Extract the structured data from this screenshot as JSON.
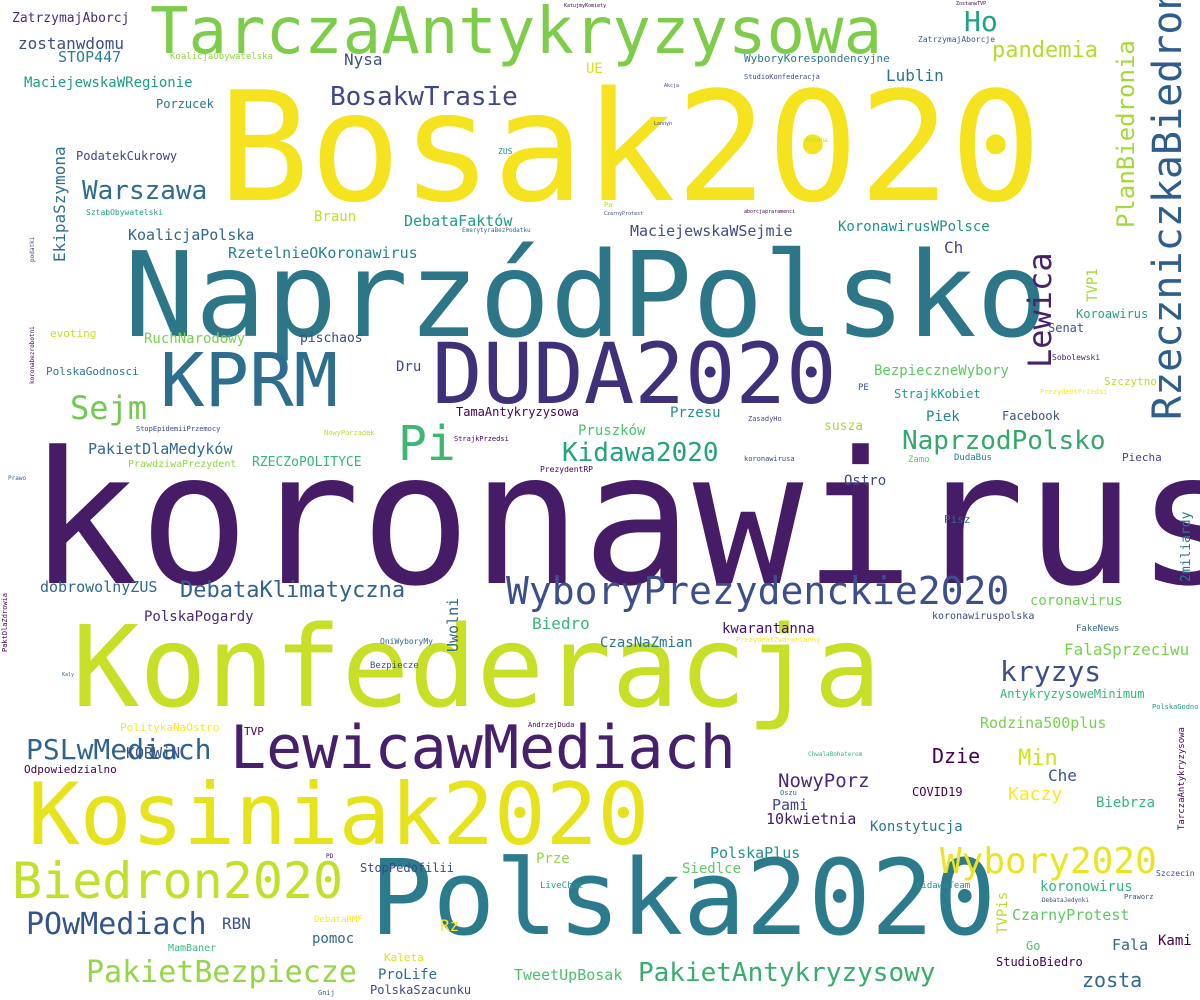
{
  "colors": {
    "background": "#ffffff",
    "palette": [
      "#440154",
      "#482878",
      "#3e4989",
      "#31688e",
      "#26828e",
      "#1f9e89",
      "#35b779",
      "#6ece58",
      "#b5de2b",
      "#fde725"
    ]
  },
  "words": [
    {
      "text": "koronawirus",
      "color": "#461c67"
    },
    {
      "text": "Bosak2020",
      "color": "#f5e31f"
    },
    {
      "text": "NaprzódPolsko",
      "color": "#2c7688"
    },
    {
      "text": "Konfederacja",
      "color": "#c7df27"
    },
    {
      "text": "Polska2020",
      "color": "#2b7b8c"
    },
    {
      "text": "Kosiniak2020",
      "color": "#e6e21c"
    },
    {
      "text": "TarczaAntykryzysowa",
      "color": "#7dcd4a"
    },
    {
      "text": "DUDA2020",
      "color": "#40307a"
    },
    {
      "text": "KPRM",
      "color": "#2d6d8e"
    },
    {
      "text": "LewicawMediach",
      "color": "#47206c"
    },
    {
      "text": "Biedron2020",
      "color": "#c2df2a"
    },
    {
      "text": "WyboryPrezydenckie2020",
      "color": "#3c4f8c"
    },
    {
      "text": "RzeczniczkaBiedronia",
      "color": "#2f5e8e"
    },
    {
      "text": "Pi",
      "color": "#3eb772"
    },
    {
      "text": "Sejm",
      "color": "#72c94e"
    },
    {
      "text": "Lewica",
      "color": "#47216c"
    },
    {
      "text": "PlanBiedronia",
      "color": "#a4d93a"
    },
    {
      "text": "Wybory2020",
      "color": "#eae422"
    },
    {
      "text": "PakietBezpiecze",
      "color": "#95d648"
    },
    {
      "text": "PakietAntykryzysowy",
      "color": "#38ad6d"
    },
    {
      "text": "POwMediach",
      "color": "#34558c"
    },
    {
      "text": "PSLwMediach",
      "color": "#30648e"
    },
    {
      "text": "BosakwTrasie",
      "color": "#414688"
    },
    {
      "text": "Warszawa",
      "color": "#2f6c8e"
    },
    {
      "text": "DebataKlimatyczna",
      "color": "#32628d"
    },
    {
      "text": "NaprzodPolsko",
      "color": "#35a86c"
    },
    {
      "text": "Kidawa2020",
      "color": "#22a37e"
    },
    {
      "text": "kryzys",
      "color": "#3c4e8b"
    },
    {
      "text": "Ho",
      "color": "#1fa386"
    },
    {
      "text": "pandemia",
      "color": "#b4dc2c"
    },
    {
      "text": "zostanwdomu",
      "color": "#3b4e8b"
    },
    {
      "text": "ZatrzymajAborcj",
      "color": "#482c79"
    },
    {
      "text": "STOP447",
      "color": "#28818e"
    },
    {
      "text": "MaciejewskaWRegionie",
      "color": "#1f9c89"
    },
    {
      "text": "KoalicjaObywatelska",
      "color": "#8fd544"
    },
    {
      "text": "Nysa",
      "color": "#3b518b"
    },
    {
      "text": "UE",
      "color": "#d8e21a"
    },
    {
      "text": "WyboryKorespondencyjne",
      "color": "#2b7a8e"
    },
    {
      "text": "StudioKonfederacja",
      "color": "#3e4989"
    },
    {
      "text": "Lublin",
      "color": "#2c738e"
    },
    {
      "text": "ZatrzymajAborcje",
      "color": "#38588c"
    },
    {
      "text": "Porzucek",
      "color": "#2c738e"
    },
    {
      "text": "PodatekCukrowy",
      "color": "#414487"
    },
    {
      "text": "EkipaSzymona",
      "color": "#2e6f8e"
    },
    {
      "text": "SztabObywatelski",
      "color": "#1f9e89"
    },
    {
      "text": "Braun",
      "color": "#bddf26"
    },
    {
      "text": "DebataFaktów",
      "color": "#1e9b8a"
    },
    {
      "text": "KoalicjaPolska",
      "color": "#31678e"
    },
    {
      "text": "RzetelnieOKoronawirus",
      "color": "#25858e"
    },
    {
      "text": "MaciejewskaWSejmie",
      "color": "#3d4e8a"
    },
    {
      "text": "KoronawirusWPolsce",
      "color": "#20928c"
    },
    {
      "text": "Ch",
      "color": "#404688"
    },
    {
      "text": "TVP1",
      "color": "#a0da39"
    },
    {
      "text": "Koroawirus",
      "color": "#22a385"
    },
    {
      "text": "Senat",
      "color": "#3b528b"
    },
    {
      "text": "evoting",
      "color": "#c2df23"
    },
    {
      "text": "RuchNarodowy",
      "color": "#7ad151"
    },
    {
      "text": "pischaos",
      "color": "#3f4889"
    },
    {
      "text": "PolskaGodnosci",
      "color": "#2a788e"
    },
    {
      "text": "Dru",
      "color": "#3e4a89"
    },
    {
      "text": "BezpieczneWybory",
      "color": "#5ec962"
    },
    {
      "text": "StrajkKobiet",
      "color": "#1e9b8a"
    },
    {
      "text": "Sobolewski",
      "color": "#481f70"
    },
    {
      "text": "Szczytno",
      "color": "#b8de29"
    },
    {
      "text": "TamaAntykryzysowa",
      "color": "#440154"
    },
    {
      "text": "Przesu",
      "color": "#21918c"
    },
    {
      "text": "Piek",
      "color": "#26828e"
    },
    {
      "text": "Facebook",
      "color": "#3b528b"
    },
    {
      "text": "susza",
      "color": "#a8db34"
    },
    {
      "text": "PE",
      "color": "#3b528b"
    },
    {
      "text": "PakietDlaMedyków",
      "color": "#31688e"
    },
    {
      "text": "PrawdziwaPrezydent",
      "color": "#8fd744"
    },
    {
      "text": "RZECZoPOLITYCE",
      "color": "#35b779"
    },
    {
      "text": "Pruszków",
      "color": "#4ac16d"
    },
    {
      "text": "Piecha",
      "color": "#414487"
    },
    {
      "text": "Ostro",
      "color": "#3e4a89"
    },
    {
      "text": "DudaBus",
      "color": "#26828e"
    },
    {
      "text": "Zamo",
      "color": "#5ec962"
    },
    {
      "text": "dobrowolnyZUS",
      "color": "#31688e"
    },
    {
      "text": "PolskaPogardy",
      "color": "#482878"
    },
    {
      "text": "Biedro",
      "color": "#35b779"
    },
    {
      "text": "Uwolni",
      "color": "#31688e"
    },
    {
      "text": "CzasNaZmian",
      "color": "#2a788e"
    },
    {
      "text": "kwarantanna",
      "color": "#3b0f70"
    },
    {
      "text": "coronavirus",
      "color": "#6ece58"
    },
    {
      "text": "koronawiruspolska",
      "color": "#3e4989"
    },
    {
      "text": "2miliardy",
      "color": "#2a788e"
    },
    {
      "text": "Pisz",
      "color": "#31688e"
    },
    {
      "text": "FalaSprzeciwu",
      "color": "#7ad151"
    },
    {
      "text": "AntykryzysoweMinimum",
      "color": "#35b779"
    },
    {
      "text": "Rodzina500plus",
      "color": "#7ad151"
    },
    {
      "text": "Dzie",
      "color": "#440154"
    },
    {
      "text": "Min",
      "color": "#d2e21b"
    },
    {
      "text": "Che",
      "color": "#3b528b"
    },
    {
      "text": "NowyPorz",
      "color": "#482878"
    },
    {
      "text": "Pami",
      "color": "#3e4989"
    },
    {
      "text": "10kwietnia",
      "color": "#481a6c"
    },
    {
      "text": "COVID19",
      "color": "#440154"
    },
    {
      "text": "Kaczy",
      "color": "#fde725"
    },
    {
      "text": "Biebrza",
      "color": "#35b779"
    },
    {
      "text": "Konstytucja",
      "color": "#2a788e"
    },
    {
      "text": "KORWiN",
      "color": "#3b528b"
    },
    {
      "text": "Odpowiedzialno",
      "color": "#440154"
    },
    {
      "text": "TVP",
      "color": "#440154"
    },
    {
      "text": "PolskaPlus",
      "color": "#21918c"
    },
    {
      "text": "Prze",
      "color": "#8fd744"
    },
    {
      "text": "Siedlce",
      "color": "#5ec962"
    },
    {
      "text": "StopPedofilii",
      "color": "#3e4989"
    },
    {
      "text": "RBN",
      "color": "#3b528b"
    },
    {
      "text": "pomoc",
      "color": "#31688e"
    },
    {
      "text": "Rz",
      "color": "#fde725"
    },
    {
      "text": "koronowirus",
      "color": "#35b779"
    },
    {
      "text": "CzarnyProtest",
      "color": "#5ec962"
    },
    {
      "text": "TVPis",
      "color": "#b5de2b"
    },
    {
      "text": "Go",
      "color": "#4ac16d"
    },
    {
      "text": "Fala",
      "color": "#31688e"
    },
    {
      "text": "Kami",
      "color": "#440154"
    },
    {
      "text": "zosta",
      "color": "#31688e"
    },
    {
      "text": "StudioBiedro",
      "color": "#440154"
    },
    {
      "text": "TweetUpBosak",
      "color": "#4ac16d"
    },
    {
      "text": "ProLife",
      "color": "#31688e"
    },
    {
      "text": "PolskaSzacunku",
      "color": "#3e4989"
    },
    {
      "text": "Kaleta",
      "color": "#d8e219"
    },
    {
      "text": "MamBaner",
      "color": "#35b779"
    },
    {
      "text": "TarczaAntykryzysowa",
      "color": "#440154"
    },
    {
      "text": "PolitykaNaOstro",
      "color": "#fde725"
    },
    {
      "text": "LiveChat",
      "color": "#1f9e89"
    },
    {
      "text": "KidawaTeam",
      "color": "#20928c"
    },
    {
      "text": "DebataRMF",
      "color": "#fde725"
    },
    {
      "text": "Bezpiecze",
      "color": "#3b528b"
    },
    {
      "text": "OniWyboryMy",
      "color": "#31688e"
    },
    {
      "text": "FakeNews",
      "color": "#31688e"
    },
    {
      "text": "PolskaGodno",
      "color": "#1f9e89"
    },
    {
      "text": "Szczecin",
      "color": "#3e4989"
    },
    {
      "text": "PrezydentRP",
      "color": "#440154"
    },
    {
      "text": "StrajkPrzedsi",
      "color": "#440154"
    },
    {
      "text": "StopEpidemiiPrzemocy",
      "color": "#3e4989"
    },
    {
      "text": "NowyPorzadek",
      "color": "#b5de2b"
    },
    {
      "text": "ZasadyHo",
      "color": "#3e4989"
    },
    {
      "text": "koronawirusa",
      "color": "#3e4989"
    },
    {
      "text": "PrezydentPrzedsi",
      "color": "#fde725"
    },
    {
      "text": "AndrzejDuda",
      "color": "#440154"
    },
    {
      "text": "PrezydentZwarantanny",
      "color": "#fde725"
    },
    {
      "text": "ChwalaBohaterom",
      "color": "#35b779"
    },
    {
      "text": "Oszu",
      "color": "#31688e"
    },
    {
      "text": "Praworz",
      "color": "#3e4989"
    },
    {
      "text": "DebataJedynki",
      "color": "#3e4989"
    },
    {
      "text": "PD",
      "color": "#440154"
    },
    {
      "text": "Gnij",
      "color": "#31688e"
    },
    {
      "text": "PaktDlaZdrowia",
      "color": "#440154"
    },
    {
      "text": "Prawo",
      "color": "#31688e"
    },
    {
      "text": "Kaly",
      "color": "#31688e"
    },
    {
      "text": "KatujmyKomiety",
      "color": "#440154"
    },
    {
      "text": "ZostanwTVP",
      "color": "#440154"
    },
    {
      "text": "Akcja",
      "color": "#3e4989"
    },
    {
      "text": "Lonnyn",
      "color": "#3e4989"
    },
    {
      "text": "ZUS",
      "color": "#21918c"
    },
    {
      "text": "Korona",
      "color": "#b5de2b"
    },
    {
      "text": "Pa",
      "color": "#b5de2b"
    },
    {
      "text": "CzarnyProtest",
      "color": "#3e4989"
    },
    {
      "text": "aborcjapraramenci",
      "color": "#440154"
    },
    {
      "text": "EmerytyraBezPodatku",
      "color": "#31688e"
    },
    {
      "text": "podatki",
      "color": "#3e4989"
    },
    {
      "text": "koronabezrobotni",
      "color": "#440154"
    }
  ]
}
